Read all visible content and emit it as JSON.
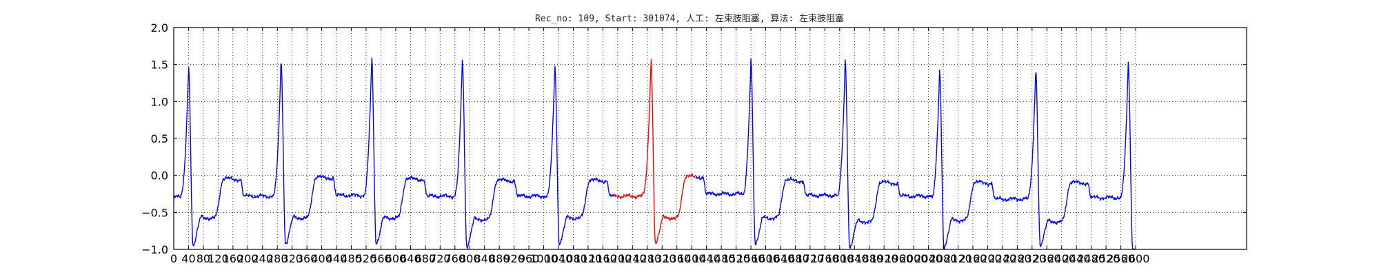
{
  "chart_data": {
    "type": "line",
    "title": "Rec_no: 109, Start: 301074, 人工: 左束肢阻塞, 算法: 左束肢阻塞",
    "xlabel": "",
    "ylabel": "",
    "xlim": [
      0,
      2900
    ],
    "ylim": [
      -1.0,
      2.0
    ],
    "grid": true,
    "grid_style": "dotted",
    "xticks": [
      0,
      40,
      80,
      120,
      160,
      200,
      240,
      280,
      320,
      360,
      400,
      440,
      480,
      520,
      560,
      600,
      640,
      680,
      720,
      760,
      800,
      840,
      880,
      920,
      960,
      1000,
      1040,
      1080,
      1120,
      1160,
      1200,
      1240,
      1280,
      1320,
      1360,
      1400,
      1440,
      1480,
      1520,
      1560,
      1600,
      1640,
      1680,
      1720,
      1760,
      1800,
      1840,
      1880,
      1920,
      1960,
      2000,
      2040,
      2080,
      2120,
      2160,
      2200,
      2240,
      2280,
      2320,
      2360,
      2400,
      2440,
      2480,
      2520,
      2560,
      2600
    ],
    "yticks": [
      -1.0,
      -0.5,
      0.0,
      0.5,
      1.0,
      1.5,
      2.0
    ],
    "ytick_labels": [
      "−1.0",
      "−0.5",
      "0.0",
      "0.5",
      "1.0",
      "1.5",
      "2.0"
    ],
    "signal_range": [
      0,
      2600
    ],
    "beats": [
      {
        "r": 40,
        "amp": 1.47,
        "s": -0.95,
        "st": -0.55,
        "t": -0.05,
        "base": -0.28
      },
      {
        "r": 290,
        "amp": 1.57,
        "s": -0.93,
        "st": -0.55,
        "t": -0.03,
        "base": -0.27
      },
      {
        "r": 535,
        "amp": 1.6,
        "s": -0.93,
        "st": -0.55,
        "t": -0.05,
        "base": -0.28
      },
      {
        "r": 780,
        "amp": 1.57,
        "s": -0.97,
        "st": -0.57,
        "t": -0.07,
        "base": -0.28
      },
      {
        "r": 1030,
        "amp": 1.5,
        "s": -0.93,
        "st": -0.55,
        "t": -0.07,
        "base": -0.28
      },
      {
        "r": 1290,
        "amp": 1.58,
        "s": -0.92,
        "st": -0.55,
        "t": -0.02,
        "base": -0.25
      },
      {
        "r": 1560,
        "amp": 1.57,
        "s": -0.93,
        "st": -0.55,
        "t": -0.07,
        "base": -0.27
      },
      {
        "r": 1815,
        "amp": 1.55,
        "s": -0.98,
        "st": -0.6,
        "t": -0.1,
        "base": -0.28
      },
      {
        "r": 2070,
        "amp": 1.42,
        "s": -0.98,
        "st": -0.58,
        "t": -0.1,
        "base": -0.32
      },
      {
        "r": 2330,
        "amp": 1.45,
        "s": -0.95,
        "st": -0.6,
        "t": -0.1,
        "base": -0.3
      },
      {
        "r": 2580,
        "amp": 1.52,
        "s": -1.0,
        "st": -1.0,
        "t": -1.0,
        "base": -0.3
      }
    ],
    "series": [
      {
        "color": "#0000ff",
        "segment": [
          0,
          1190
        ]
      },
      {
        "color": "#ff0000",
        "segment": [
          1190,
          1410
        ]
      },
      {
        "color": "#0000ff",
        "segment": [
          1410,
          2600
        ]
      }
    ]
  }
}
